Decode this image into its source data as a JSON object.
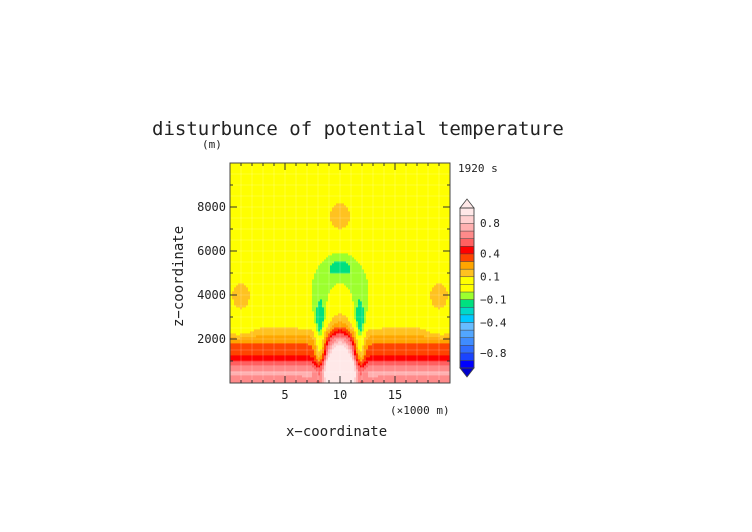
{
  "chart_data": {
    "type": "heatmap",
    "title": "disturbunce of potential temperature",
    "time_label": "1920 s",
    "ylabel": "z−coordinate",
    "yunit": "(m)",
    "xlabel": "x−coordinate",
    "xunit": "(×1000 m)",
    "xlim": [
      0,
      20
    ],
    "ylim": [
      0,
      10000
    ],
    "xticks": [
      5,
      10,
      15
    ],
    "xtick_labels": [
      "5",
      "10",
      "15"
    ],
    "yticks": [
      2000,
      4000,
      6000,
      8000
    ],
    "ytick_labels": [
      "2000",
      "4000",
      "6000",
      "8000"
    ],
    "grid": true,
    "colorbar": {
      "position": "right",
      "bounds": [
        -1.0,
        -0.9,
        -0.8,
        -0.7,
        -0.6,
        -0.5,
        -0.4,
        -0.3,
        -0.2,
        -0.1,
        -0.05,
        0.05,
        0.1,
        0.2,
        0.3,
        0.4,
        0.5,
        0.6,
        0.7,
        0.8,
        0.9,
        1.0
      ],
      "colors": [
        "#0000ff",
        "#1a44ff",
        "#2f6cff",
        "#3f8cff",
        "#52a6ff",
        "#66bcff",
        "#00c8ff",
        "#00d8c8",
        "#00e080",
        "#9cff2e",
        "#ffff00",
        "#ffff00",
        "#ffc220",
        "#ffa500",
        "#ff4400",
        "#ff0000",
        "#ff6060",
        "#ff8a8a",
        "#ffb0b0",
        "#ffd0d0",
        "#ffe8e8"
      ],
      "label_values": [
        0.8,
        0.4,
        0.1,
        -0.1,
        -0.4,
        -0.8
      ],
      "labels": [
        "0.8",
        "0.4",
        "0.1",
        "−0.1",
        "−0.4",
        "−0.8"
      ],
      "extend": "both",
      "over_color": "#ffe8e8",
      "under_color": "#0000cc"
    },
    "field": {
      "background": 0.0,
      "features": [
        {
          "x": 10,
          "z": 600,
          "sx": 0.9,
          "sz": 1200,
          "amp": 0.9
        },
        {
          "x": 10,
          "z": 900,
          "sx": 0.7,
          "sz": 350,
          "amp": 0.35
        },
        {
          "x": 8.2,
          "z": 1500,
          "sx": 0.35,
          "sz": 1100,
          "amp": -0.35
        },
        {
          "x": 11.8,
          "z": 1500,
          "sx": 0.35,
          "sz": 1100,
          "amp": -0.35
        },
        {
          "x": 10,
          "z": 4400,
          "sx": 1.9,
          "sz": 700,
          "amp": -0.12
        },
        {
          "x": 10,
          "z": 5400,
          "sx": 1.1,
          "sz": 500,
          "amp": -0.1
        },
        {
          "x": 10,
          "z": 3800,
          "sx": 0.8,
          "sz": 900,
          "amp": 0.13
        },
        {
          "x": 10,
          "z": 7600,
          "sx": 1.2,
          "sz": 800,
          "amp": 0.13
        },
        {
          "x": 1.0,
          "z": 4000,
          "sx": 1.3,
          "sz": 900,
          "amp": 0.12
        },
        {
          "x": 19.0,
          "z": 4000,
          "sx": 1.3,
          "sz": 900,
          "amp": 0.12
        },
        {
          "x": 0.8,
          "z": 2400,
          "sx": 1.0,
          "sz": 260,
          "amp": -0.13
        },
        {
          "x": 19.2,
          "z": 2400,
          "sx": 1.0,
          "sz": 260,
          "amp": -0.13
        },
        {
          "x": 10,
          "z": 3000,
          "sx": 1.8,
          "sz": 650,
          "amp": -0.08
        }
      ],
      "bands": [
        {
          "z": 0,
          "sz": 600,
          "amp": 0.55
        },
        {
          "z": 650,
          "sz": 350,
          "amp": 0.2
        },
        {
          "z": 1300,
          "sz": 700,
          "amp": 0.25
        },
        {
          "z": 1900,
          "sz": 500,
          "amp": 0.1
        }
      ]
    }
  }
}
